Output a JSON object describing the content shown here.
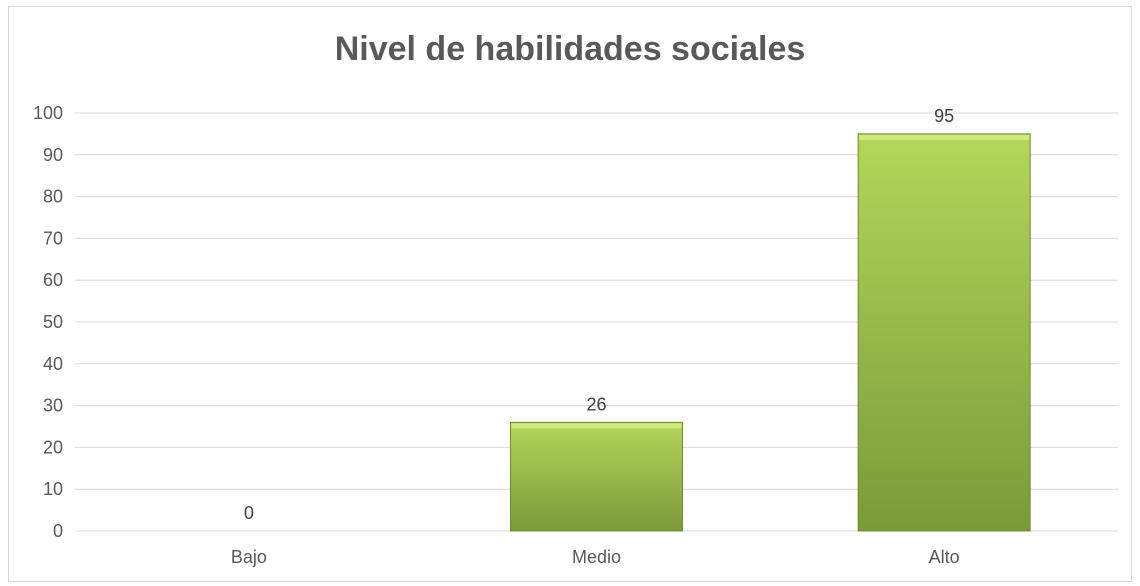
{
  "chart_data": {
    "type": "bar",
    "title": "Nivel de habilidades sociales",
    "categories": [
      "Bajo",
      "Medio",
      "Alto"
    ],
    "values": [
      0,
      26,
      95
    ],
    "data_labels": [
      "0",
      "26",
      "95"
    ],
    "xlabel": "",
    "ylabel": "",
    "ylim": [
      0,
      100
    ],
    "yticks": [
      "0",
      "10",
      "20",
      "30",
      "40",
      "50",
      "60",
      "70",
      "80",
      "90",
      "100"
    ],
    "grid": true,
    "legend": "none",
    "bar_color": "#9bbb59"
  }
}
